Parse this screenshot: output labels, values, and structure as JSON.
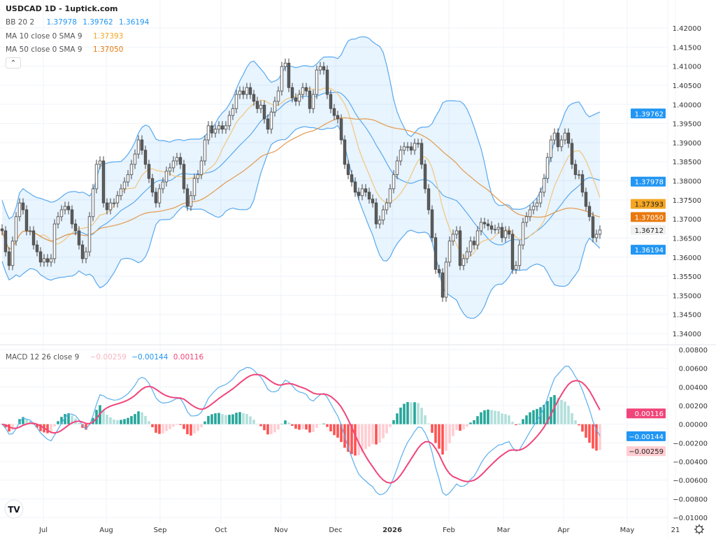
{
  "header": {
    "title": "USDCAD 1D - 1uptick.com"
  },
  "legend": {
    "bb": {
      "label": "BB 20 2",
      "basis": "1.37978",
      "upper": "1.39762",
      "lower": "1.36194"
    },
    "ma10": {
      "label": "MA 10 close 0 SMA 9",
      "value": "1.37393"
    },
    "ma50": {
      "label": "MA 50 close 0 SMA 9",
      "value": "1.37050"
    },
    "macd": {
      "label": "MACD 12 26 close 9",
      "histogram": "−0.00259",
      "macd": "−0.00144",
      "signal": "0.00116"
    },
    "collapse_icon": "chevron-up-icon"
  },
  "colors": {
    "up_body": "#ffffff",
    "down_body": "#5d5d5d",
    "wick": "#444444",
    "bb_line": "#5aa9ee",
    "bb_fill": "rgba(33,150,243,0.10)",
    "ma10": "#f3c57d",
    "ma50": "#e39a4f",
    "macd_line": "#5aaeee",
    "signal_line": "#f0457a",
    "hist_up_strong": "#26a69a",
    "hist_up_weak": "#b2dfdb",
    "hist_down_strong": "#ff5252",
    "hist_down_weak": "#ffcdd2"
  },
  "chart_data": {
    "type": "candlestick",
    "symbol": "USDCAD",
    "interval": "1D",
    "close": [
      1.3669,
      1.3614,
      1.3578,
      1.3642,
      1.3706,
      1.3742,
      1.3724,
      1.3669,
      1.3669,
      1.3632,
      1.3614,
      1.3587,
      1.3596,
      1.3587,
      1.3596,
      1.3687,
      1.3706,
      1.3724,
      1.3733,
      1.3724,
      1.3687,
      1.3669,
      1.3632,
      1.3596,
      1.3614,
      1.3706,
      1.3779,
      1.3843,
      1.3852,
      1.3742,
      1.3724,
      1.3742,
      1.3742,
      1.3761,
      1.3779,
      1.3797,
      1.3816,
      1.3843,
      1.387,
      1.3907,
      1.388,
      1.3843,
      1.3806,
      1.377,
      1.3742,
      1.3779,
      1.3797,
      1.3825,
      1.3834,
      1.3852,
      1.3861,
      1.3843,
      1.3779,
      1.3733,
      1.3761,
      1.3806,
      1.3816,
      1.3852,
      1.3907,
      1.3944,
      1.3925,
      1.3935,
      1.3944,
      1.3935,
      1.3944,
      1.3971,
      1.3989,
      1.4026,
      1.4035,
      1.4026,
      1.4044,
      1.4026,
      1.4008,
      1.3989,
      1.3998,
      1.3962,
      1.3935,
      1.398,
      1.4008,
      1.4035,
      1.4099,
      1.4108,
      1.4044,
      1.4017,
      1.4008,
      1.4026,
      1.4044,
      1.4035,
      1.3989,
      1.4026,
      1.409,
      1.4099,
      1.409,
      1.4026,
      1.3989,
      1.3971,
      1.3962,
      1.3907,
      1.3843,
      1.3816,
      1.3797,
      1.377,
      1.3761,
      1.3779,
      1.377,
      1.3752,
      1.3742,
      1.3687,
      1.3697,
      1.3724,
      1.3742,
      1.3779,
      1.3816,
      1.3852,
      1.388,
      1.3889,
      1.3889,
      1.388,
      1.3898,
      1.3898,
      1.3843,
      1.3779,
      1.3724,
      1.3651,
      1.3568,
      1.3559,
      1.3495,
      1.3587,
      1.3642,
      1.366,
      1.3669,
      1.3578,
      1.3596,
      1.3614,
      1.3642,
      1.3632,
      1.3669,
      1.3691,
      1.3687,
      1.3682,
      1.3673,
      1.3673,
      1.3678,
      1.3651,
      1.3669,
      1.366,
      1.3568,
      1.3578,
      1.3632,
      1.3691,
      1.3706,
      1.3724,
      1.3733,
      1.3742,
      1.377,
      1.3806,
      1.3861,
      1.3907,
      1.3925,
      1.3889,
      1.3907,
      1.3925,
      1.3898,
      1.3843,
      1.3816,
      1.3816,
      1.377,
      1.3733,
      1.3706,
      1.3651,
      1.366,
      1.3671
    ],
    "price_ticks": [
      "1.42000",
      "1.41500",
      "1.41000",
      "1.40500",
      "1.40000",
      "1.39500",
      "1.39000",
      "1.38500",
      "1.38000",
      "1.37500",
      "1.37000",
      "1.36500",
      "1.36000",
      "1.35500",
      "1.35000",
      "1.34500",
      "1.34000"
    ],
    "price_range": [
      1.34,
      1.42
    ],
    "macd_ticks": [
      "0.00800",
      "0.00600",
      "0.00400",
      "0.00200",
      "0.00000",
      "−0.00200",
      "−0.00400",
      "−0.00600",
      "−0.00800",
      "−0.01000"
    ],
    "macd_range": [
      -0.01,
      0.008
    ],
    "x_labels": [
      "Jul",
      "Aug",
      "Sep",
      "Oct",
      "Nov",
      "Dec",
      "2026",
      "Feb",
      "Mar",
      "Apr",
      "May",
      "21"
    ],
    "price_badges": [
      {
        "name": "bb-upper",
        "value": "1.39762",
        "bg": "#2196f3",
        "fg": "#ffffff"
      },
      {
        "name": "bb-basis",
        "value": "1.37978",
        "bg": "#2196f3",
        "fg": "#ffffff"
      },
      {
        "name": "ma10",
        "value": "1.37393",
        "bg": "#f5a623",
        "fg": "#222222"
      },
      {
        "name": "ma50",
        "value": "1.37050",
        "bg": "#e8790f",
        "fg": "#ffffff"
      },
      {
        "name": "last-price",
        "value": "1.36712",
        "bg": "#f0f0f0",
        "fg": "#222222"
      },
      {
        "name": "bb-lower",
        "value": "1.36194",
        "bg": "#2196f3",
        "fg": "#ffffff"
      }
    ],
    "macd_badges": [
      {
        "name": "signal",
        "value": "0.00116",
        "bg": "#f0457a",
        "fg": "#ffffff"
      },
      {
        "name": "macd",
        "value": "−0.00144",
        "bg": "#2196f3",
        "fg": "#ffffff"
      },
      {
        "name": "histogram",
        "value": "−0.00259",
        "bg": "#ffcdd2",
        "fg": "#222222"
      }
    ],
    "grid": true
  },
  "footer": {
    "settings_icon": "gear-icon",
    "logo": "TV"
  }
}
